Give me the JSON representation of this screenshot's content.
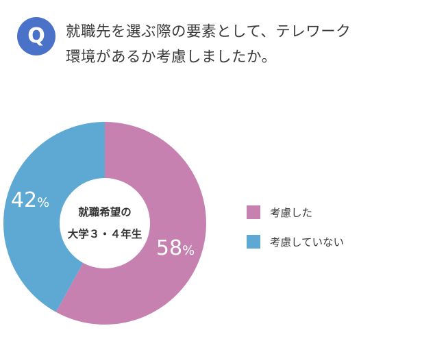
{
  "header": {
    "badge": "Q",
    "question_line1": "就職先を選ぶ際の要素として、テレワーク",
    "question_line2": "環境があるか考慮しましたか。"
  },
  "chart_data": {
    "type": "pie",
    "donut": true,
    "center_label": [
      "就職希望の",
      "大学３・４年生"
    ],
    "slices": [
      {
        "name": "考慮した",
        "value": 58,
        "label": "58%",
        "color": "#c781b0"
      },
      {
        "name": "考慮していない",
        "value": 42,
        "label": "42%",
        "color": "#5ea8d4"
      }
    ],
    "legend_position": "right"
  },
  "legend": {
    "items": [
      {
        "label": "考慮した",
        "color": "#c781b0"
      },
      {
        "label": "考慮していない",
        "color": "#5ea8d4"
      }
    ]
  }
}
